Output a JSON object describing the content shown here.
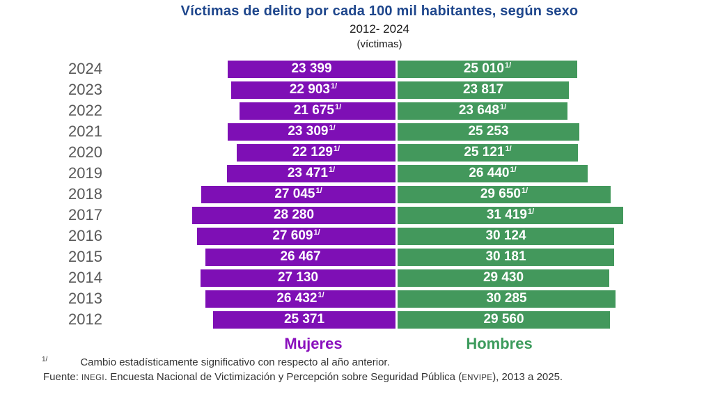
{
  "header": {
    "title": "Víctimas de delito por cada 100 mil habitantes, según sexo",
    "period": "2012- 2024",
    "unit": "(víctimas)"
  },
  "chart_data": {
    "type": "bar",
    "orientation": "diverging-horizontal",
    "categories": [
      "2024",
      "2023",
      "2022",
      "2021",
      "2020",
      "2019",
      "2018",
      "2017",
      "2016",
      "2015",
      "2014",
      "2013",
      "2012"
    ],
    "series": [
      {
        "name": "Mujeres",
        "color": "#7E0FB5",
        "values": [
          23399,
          22903,
          21675,
          23309,
          22129,
          23471,
          27045,
          28280,
          27609,
          26467,
          27130,
          26432,
          25371
        ],
        "labels": [
          "23 399",
          "22 903",
          "21 675",
          "23 309",
          "22 129",
          "23 471",
          "27 045",
          "28 280",
          "27 609",
          "26 467",
          "27 130",
          "26 432",
          "25 371"
        ],
        "significant": [
          false,
          true,
          true,
          true,
          true,
          true,
          true,
          false,
          true,
          false,
          false,
          true,
          false
        ]
      },
      {
        "name": "Hombres",
        "color": "#43985C",
        "values": [
          25010,
          23817,
          23648,
          25253,
          25121,
          26440,
          29650,
          31419,
          30124,
          30181,
          29430,
          30285,
          29560
        ],
        "labels": [
          "25 010",
          "23 817",
          "23 648",
          "25 253",
          "25 121",
          "26 440",
          "29 650",
          "31 419",
          "30 124",
          "30 181",
          "29 430",
          "30 285",
          "29 560"
        ],
        "significant": [
          true,
          false,
          true,
          false,
          true,
          true,
          true,
          true,
          false,
          false,
          false,
          false,
          false
        ]
      }
    ],
    "significance_marker": "1/",
    "value_range": [
      0,
      31419
    ],
    "title": "Víctimas de delito por cada 100 mil habitantes, según sexo",
    "xlabel": "",
    "ylabel": ""
  },
  "legend": {
    "mujeres": "Mujeres",
    "hombres": "Hombres",
    "mujeres_color": "#8A10BD",
    "hombres_color": "#3C9B5C"
  },
  "footnote": {
    "marker": "1/",
    "text": "Cambio estadísticamente significativo con respecto al año anterior."
  },
  "source": {
    "prefix": "Fuente: ",
    "inegi": "INEGI",
    "middle": ". Encuesta Nacional de Victimización y Percepción sobre Seguridad Pública (",
    "envipe": "ENVIPE",
    "suffix": "), 2013 a 2025."
  }
}
